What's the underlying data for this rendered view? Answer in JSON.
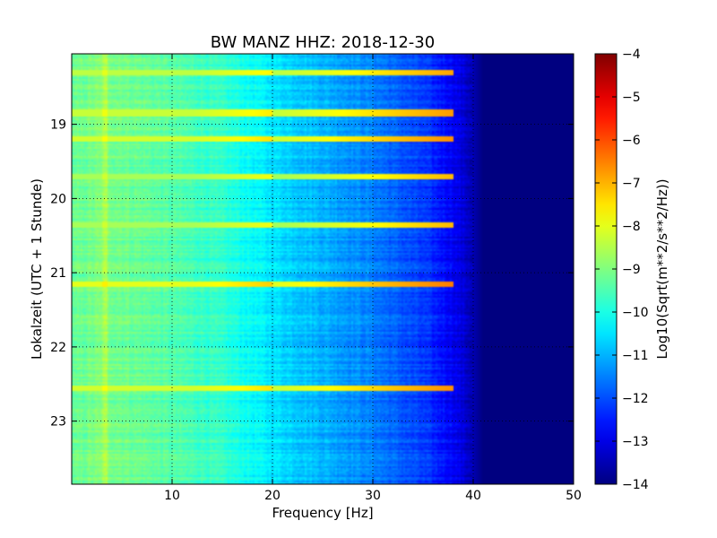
{
  "chart_data": {
    "type": "heatmap",
    "title": "BW MANZ HHZ: 2018-12-30",
    "xlabel": "Frequency [Hz]",
    "ylabel": "Lokalzeit (UTC + 1 Stunde)",
    "xlim": [
      0,
      50
    ],
    "ylim": [
      18.05,
      23.85
    ],
    "x_ticks": [
      10,
      20,
      30,
      40,
      50
    ],
    "y_ticks": [
      19,
      20,
      21,
      22,
      23
    ],
    "grid": true,
    "colorbar": {
      "label": "Log10(Sqrt(m**2/s**2/Hz))",
      "range": [
        -14,
        -4
      ],
      "ticks": [
        -4,
        -5,
        -6,
        -7,
        -8,
        -9,
        -10,
        -11,
        -12,
        -13,
        -14
      ],
      "colormap": "jet"
    },
    "base_profile": [
      {
        "freq": 0,
        "value": -9.3
      },
      {
        "freq": 3,
        "value": -9.0
      },
      {
        "freq": 8,
        "value": -9.3
      },
      {
        "freq": 15,
        "value": -9.8
      },
      {
        "freq": 20,
        "value": -10.5
      },
      {
        "freq": 25,
        "value": -11.0
      },
      {
        "freq": 30,
        "value": -11.5
      },
      {
        "freq": 35,
        "value": -12.2
      },
      {
        "freq": 38,
        "value": -12.8
      },
      {
        "freq": 40,
        "value": -13.5
      },
      {
        "freq": 41,
        "value": -14.0
      },
      {
        "freq": 50,
        "value": -14.0
      }
    ],
    "bright_bands": [
      {
        "time": 18.3,
        "value": -8.4
      },
      {
        "time": 18.85,
        "value": -8.3
      },
      {
        "time": 19.2,
        "value": -8.2
      },
      {
        "time": 19.7,
        "value": -8.6
      },
      {
        "time": 20.35,
        "value": -8.6
      },
      {
        "time": 21.15,
        "value": -8.0
      },
      {
        "time": 22.55,
        "value": -8.2
      }
    ]
  }
}
